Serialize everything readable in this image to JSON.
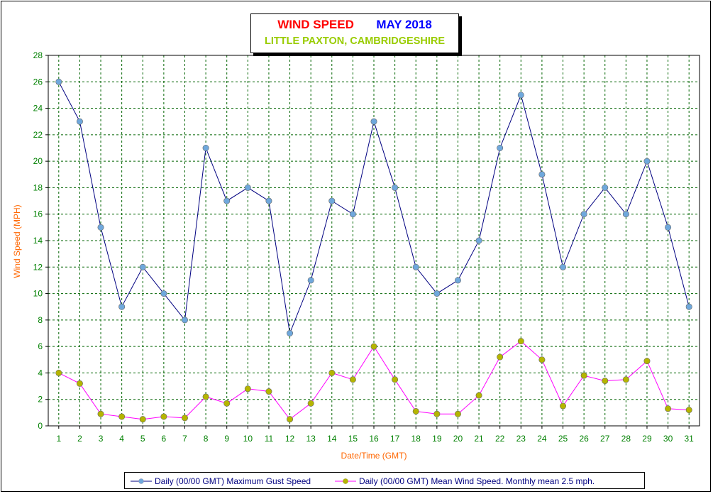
{
  "chart_data": {
    "type": "line",
    "title_part1": "WIND SPEED",
    "title_part2": "MAY 2018",
    "subtitle": "LITTLE PAXTON, CAMBRIDGESHIRE",
    "xlabel": "Date/Time (GMT)",
    "ylabel": "Wind Speed (MPH)",
    "ylim": [
      0,
      28
    ],
    "yticks": [
      0,
      2,
      4,
      6,
      8,
      10,
      12,
      14,
      16,
      18,
      20,
      22,
      24,
      26,
      28
    ],
    "categories": [
      "1",
      "2",
      "3",
      "4",
      "5",
      "6",
      "7",
      "8",
      "9",
      "10",
      "11",
      "12",
      "13",
      "14",
      "15",
      "16",
      "17",
      "18",
      "19",
      "20",
      "21",
      "22",
      "23",
      "24",
      "25",
      "26",
      "27",
      "28",
      "29",
      "30",
      "31"
    ],
    "grid": true,
    "legend_position": "bottom",
    "series": [
      {
        "name": "Daily (00/00 GMT) Maximum Gust Speed",
        "line_color": "#000080",
        "marker_color": "#6fa8dc",
        "values": [
          26,
          23,
          15,
          9,
          12,
          10,
          8,
          21,
          17,
          18,
          17,
          7,
          11,
          17,
          16,
          23,
          18,
          12,
          10,
          11,
          14,
          21,
          25,
          19,
          12,
          16,
          18,
          16,
          20,
          15,
          9
        ]
      },
      {
        "name": "Daily (00/00 GMT) Mean Wind Speed. Monthly mean 2.5 mph.",
        "line_color": "#ff00ff",
        "marker_color": "#b5b500",
        "values": [
          4.0,
          3.2,
          0.9,
          0.7,
          0.5,
          0.7,
          0.6,
          2.2,
          1.7,
          2.8,
          2.6,
          0.5,
          1.7,
          4.0,
          3.5,
          6.0,
          3.5,
          1.1,
          0.9,
          0.9,
          2.3,
          5.2,
          6.4,
          5.0,
          1.5,
          3.8,
          3.4,
          3.5,
          4.9,
          1.3,
          1.2
        ]
      }
    ],
    "colors": {
      "title_part1": "#ff0000",
      "title_part2": "#0000ff",
      "subtitle": "#99cc00",
      "axis_label": "#ff6600",
      "tick_label": "#008000",
      "grid": "#006400"
    }
  }
}
